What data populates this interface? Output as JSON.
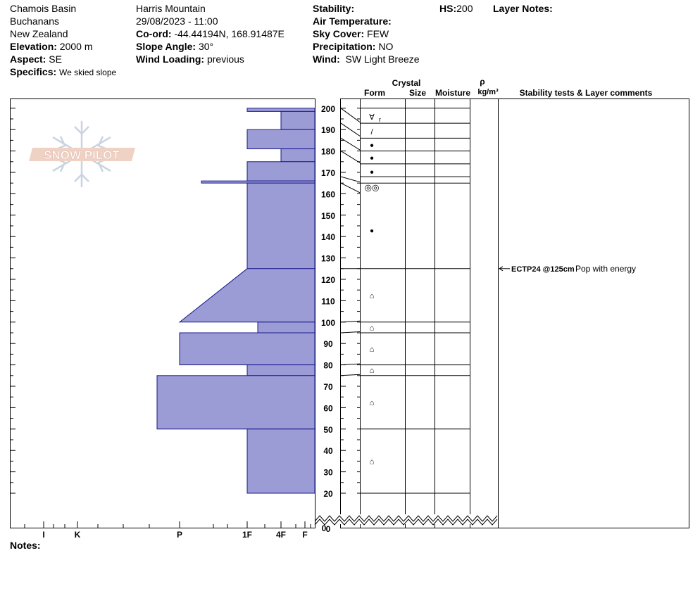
{
  "header": {
    "location": "Chamois Basin",
    "region": "Buchanans",
    "country": "New Zealand",
    "elevation_label": "Elevation:",
    "elevation": "2000 m",
    "aspect_label": "Aspect:",
    "aspect": "SE",
    "specifics_label": "Specifics:",
    "specifics": "We skied slope",
    "mountain": "Harris Mountain",
    "datetime": "29/08/2023 - 11:00",
    "coord_label": "Co-ord:",
    "coord": "-44.44194N, 168.91487E",
    "slope_label": "Slope Angle:",
    "slope": "30°",
    "wind_loading_label": "Wind Loading:",
    "wind_loading": "previous",
    "stability_label": "Stability:",
    "stability": "",
    "air_temp_label": "Air Temperature:",
    "air_temp": "",
    "sky_label": "Sky Cover:",
    "sky": "FEW",
    "precip_label": "Precipitation:",
    "precip": "NO",
    "wind_label": "Wind:",
    "wind": "SW Light Breeze",
    "hs_label": "HS:",
    "hs": "200",
    "layer_notes_label": "Layer Notes:"
  },
  "logo": {
    "text": "SNOW PILOT"
  },
  "notes_label": "Notes:",
  "columns": {
    "crystal": "Crystal",
    "form": "Form",
    "size": "Size",
    "moisture": "Moisture",
    "rho": "ρ",
    "density_unit": "kg/m³",
    "comments": "Stability tests & Layer comments"
  },
  "colors": {
    "fill": "#9b9bd6",
    "stroke": "#1a1a8c"
  },
  "chart_data": {
    "type": "area",
    "hardness_axis": {
      "labels": [
        "I",
        "K",
        "P",
        "1F",
        "4F",
        "F"
      ]
    },
    "height_axis": {
      "ticks": [
        0,
        20,
        30,
        40,
        50,
        60,
        70,
        80,
        90,
        100,
        110,
        120,
        130,
        140,
        150,
        160,
        170,
        180,
        190,
        200
      ],
      "range": [
        0,
        200
      ],
      "unit": "cm"
    },
    "hardness_profile": [
      {
        "top": 200,
        "bottom": 198.5,
        "hardness": "1F"
      },
      {
        "top": 198.5,
        "bottom": 190,
        "hardness": "4F"
      },
      {
        "top": 190,
        "bottom": 181,
        "hardness": "1F"
      },
      {
        "top": 181,
        "bottom": 175,
        "hardness": "4F"
      },
      {
        "top": 175,
        "bottom": 166,
        "hardness": "1F"
      },
      {
        "top": 166,
        "bottom": 165,
        "hardness": "P+"
      },
      {
        "top": 165,
        "bottom": 125,
        "hardness": "1F"
      },
      {
        "top": 125,
        "bottom": 100,
        "hardness_top": "1F",
        "hardness_bottom": "P"
      },
      {
        "top": 100,
        "bottom": 95,
        "hardness": "1F+"
      },
      {
        "top": 95,
        "bottom": 80,
        "hardness": "P"
      },
      {
        "top": 80,
        "bottom": 75,
        "hardness": "1F"
      },
      {
        "top": 75,
        "bottom": 50,
        "hardness": "P-"
      },
      {
        "top": 50,
        "bottom": 20,
        "hardness": "1F"
      }
    ],
    "layer_boundaries": [
      200,
      193,
      186,
      180,
      174,
      168,
      165,
      125,
      100,
      95,
      80,
      75,
      50,
      20
    ],
    "form_symbols": [
      {
        "height": 196,
        "label": "∀",
        "sub": "r"
      },
      {
        "height": 189,
        "label": "/"
      },
      {
        "height": 183,
        "label": "●"
      },
      {
        "height": 177,
        "label": "●"
      },
      {
        "height": 170.5,
        "label": "●"
      },
      {
        "height": 163,
        "label": "◎◎"
      },
      {
        "height": 143,
        "label": "●"
      },
      {
        "height": 112.5,
        "label": "⌂"
      },
      {
        "height": 97.5,
        "label": "⌂"
      },
      {
        "height": 87.5,
        "label": "⌂"
      },
      {
        "height": 77.5,
        "label": "⌂"
      },
      {
        "height": 62.5,
        "label": "⌂"
      },
      {
        "height": 35,
        "label": "⌂"
      }
    ],
    "comments": [
      {
        "height": 125,
        "test": "ECTP24 @125cm",
        "note": "Pop with energy"
      }
    ]
  }
}
